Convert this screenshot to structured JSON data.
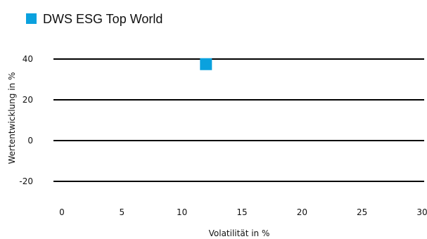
{
  "chart_data": {
    "type": "scatter",
    "title": "",
    "xlabel": "Volatilität in %",
    "ylabel": "Wertentwicklung in %",
    "xlim": [
      0,
      30
    ],
    "ylim": [
      -30,
      45
    ],
    "x_ticks": [
      0,
      5,
      10,
      15,
      20,
      25,
      30
    ],
    "y_ticks": [
      -20,
      0,
      20,
      40
    ],
    "grid": {
      "horizontal": true,
      "vertical": false
    },
    "legend_position": "top-left",
    "series": [
      {
        "name": "DWS ESG Top World",
        "color": "#0aa1de",
        "marker": "square",
        "points": [
          {
            "x": 12,
            "y": 37.5
          }
        ]
      }
    ]
  }
}
